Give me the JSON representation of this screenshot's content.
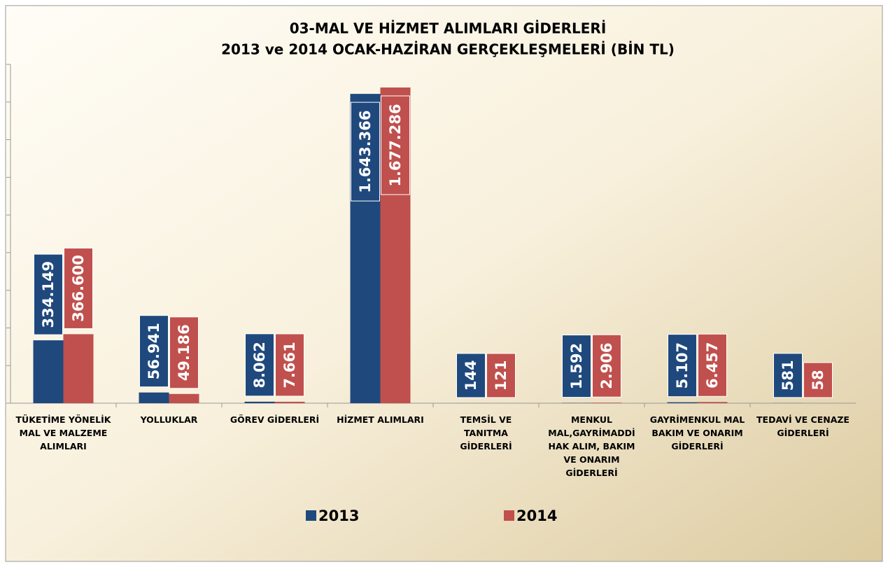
{
  "chart_data": {
    "type": "bar",
    "title": "03-MAL VE HİZMET ALIMLARI GİDERLERİ",
    "subtitle": "2013 ve 2014 OCAK-HAZİRAN GERÇEKLEŞMELERİ (BİN TL)",
    "categories": [
      "TÜKETİME YÖNELİK MAL VE MALZEME ALIMLARI",
      "YOLLUKLAR",
      "GÖREV GİDERLERİ",
      "HİZMET ALIMLARI",
      "TEMSİL VE TANITMA GİDERLERİ",
      "MENKUL MAL,GAYRİMADDİ HAK ALIM, BAKIM VE ONARIM GİDERLERİ",
      "GAYRİMENKUL MAL BAKIM VE ONARIM GİDERLERİ",
      "TEDAVİ VE CENAZE GİDERLERİ"
    ],
    "series": [
      {
        "name": "2013",
        "color": "#1f497d",
        "values": [
          334149,
          56941,
          8062,
          1643366,
          144,
          1592,
          5107,
          581
        ],
        "value_labels": [
          "334.149",
          "56.941",
          "8.062",
          "1.643.366",
          "144",
          "1.592",
          "5.107",
          "581"
        ]
      },
      {
        "name": "2014",
        "color": "#c0504d",
        "values": [
          366600,
          49186,
          7661,
          1677286,
          121,
          2906,
          6457,
          58
        ],
        "value_labels": [
          "366.600",
          "49.186",
          "7.661",
          "1.677.286",
          "121",
          "2.906",
          "6.457",
          "58"
        ]
      }
    ],
    "ylim": [
      0,
      1800000
    ],
    "yticks": [
      0,
      200000,
      400000,
      600000,
      800000,
      1000000,
      1200000,
      1400000,
      1600000,
      1800000
    ],
    "legend": "bottom"
  }
}
